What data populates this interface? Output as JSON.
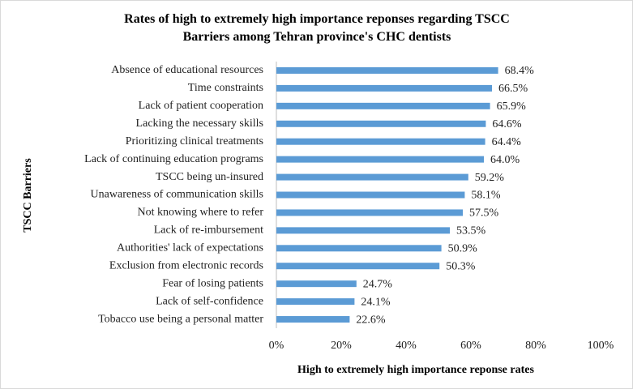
{
  "chart_data": {
    "type": "bar",
    "orientation": "horizontal",
    "title": "Rates of high to extremely high importance reponses regarding TSCC Barriers among Tehran province's CHC dentists",
    "x_label": "High to extremely high importance reponse rates",
    "y_label": "TSCC Barriers",
    "categories": [
      "Absence of educational resources",
      "Time constraints",
      "Lack of patient cooperation",
      "Lacking the necessary skills",
      "Prioritizing clinical treatments",
      "Lack of continuing education programs",
      "TSCC being un-insured",
      "Unawareness of communication skills",
      "Not knowing where to refer",
      "Lack of re-imbursement",
      "Authorities' lack of expectations",
      "Exclusion from electronic records",
      "Fear of losing patients",
      "Lack of self-confidence",
      "Tobacco use being a personal matter"
    ],
    "values": [
      68.4,
      66.5,
      65.9,
      64.6,
      64.4,
      64.0,
      59.2,
      58.1,
      57.5,
      53.5,
      50.9,
      50.3,
      24.7,
      24.1,
      22.6
    ],
    "value_labels": [
      "68.4%",
      "66.5%",
      "65.9%",
      "64.6%",
      "64.4%",
      "64.0%",
      "59.2%",
      "58.1%",
      "57.5%",
      "53.5%",
      "50.9%",
      "50.3%",
      "24.7%",
      "24.1%",
      "22.6%"
    ],
    "color": "#5b9bd5",
    "xlim": [
      0,
      100
    ],
    "xticks": [
      {
        "value": 0,
        "label": "0%"
      },
      {
        "value": 20,
        "label": "20%"
      },
      {
        "value": 40,
        "label": "40%"
      },
      {
        "value": 60,
        "label": "60%"
      },
      {
        "value": 80,
        "label": "80%"
      },
      {
        "value": 100,
        "label": "100%"
      }
    ],
    "grid": false
  }
}
